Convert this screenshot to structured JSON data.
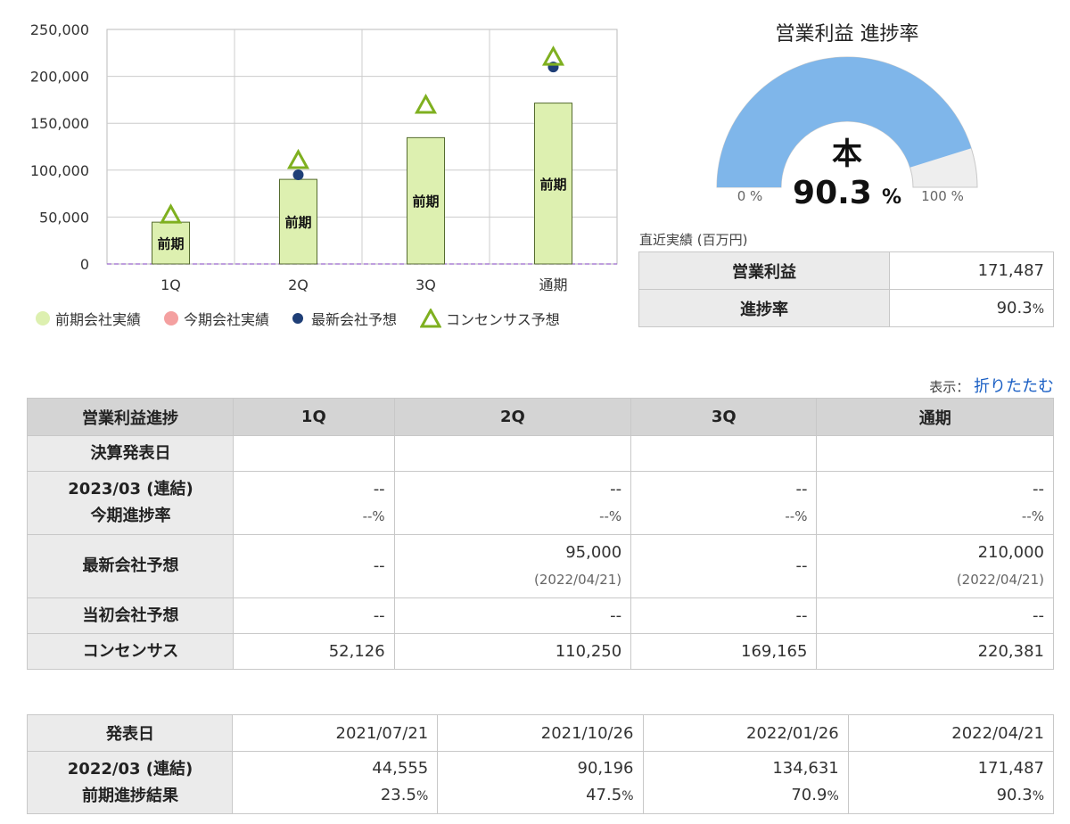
{
  "chart_data": {
    "type": "bar",
    "categories": [
      "1Q",
      "2Q",
      "3Q",
      "通期"
    ],
    "ylim": [
      0,
      250000
    ],
    "y_ticks": [
      "0",
      "50,000",
      "100,000",
      "150,000",
      "200,000",
      "250,000"
    ],
    "y_tick_values": [
      0,
      50000,
      100000,
      150000,
      200000,
      250000
    ],
    "grid": true,
    "bar_label": "前期",
    "series": [
      {
        "name": "前期会社実績",
        "type": "bar",
        "color": "#ddf0b0",
        "values": [
          44555,
          90196,
          134631,
          171487
        ]
      },
      {
        "name": "今期会社実績",
        "type": "scatter",
        "color": "#f4a0a0",
        "values": [
          null,
          null,
          null,
          null
        ]
      },
      {
        "name": "最新会社予想",
        "type": "scatter",
        "color": "#1f3f77",
        "values": [
          null,
          95000,
          null,
          210000
        ]
      },
      {
        "name": "コンセンサス予想",
        "type": "scatter",
        "marker": "triangle",
        "color": "#7fb020",
        "values": [
          52126,
          110250,
          169165,
          220381
        ]
      }
    ],
    "legend_position": "bottom"
  },
  "gauge": {
    "title": "営業利益 進捗率",
    "center_label": "本",
    "value": 90.3,
    "value_text": "90.3",
    "unit": "%",
    "min_label": "0 %",
    "max_label": "100 %",
    "fill_color": "#7fb6ea",
    "rest_color": "#eeeeee"
  },
  "recent": {
    "caption": "直近実績 (百万円)",
    "rows": [
      {
        "label": "営業利益",
        "value": "171,487",
        "unit": ""
      },
      {
        "label": "進捗率",
        "value": "90.3",
        "unit": "%"
      }
    ]
  },
  "toggle": {
    "label": "表示：",
    "link": "折りたたむ"
  },
  "progress_table": {
    "corner": "営業利益進捗",
    "headers": [
      "1Q",
      "2Q",
      "3Q",
      "通期"
    ],
    "row_announce": {
      "label": "決算発表日",
      "cells": [
        "",
        "",
        "",
        ""
      ]
    },
    "row_current": {
      "label_line1": "2023/03 (連結)",
      "label_line2": "今期進捗率",
      "cells": [
        {
          "v": "--",
          "p": "--",
          "u": "%"
        },
        {
          "v": "--",
          "p": "--",
          "u": "%"
        },
        {
          "v": "--",
          "p": "--",
          "u": "%"
        },
        {
          "v": "--",
          "p": "--",
          "u": "%"
        }
      ]
    },
    "row_latest": {
      "label": "最新会社予想",
      "cells": [
        {
          "v": "--",
          "d": ""
        },
        {
          "v": "95,000",
          "d": "(2022/04/21)"
        },
        {
          "v": "--",
          "d": ""
        },
        {
          "v": "210,000",
          "d": "(2022/04/21)"
        }
      ]
    },
    "row_initial": {
      "label": "当初会社予想",
      "cells": [
        "--",
        "--",
        "--",
        "--"
      ]
    },
    "row_consensus": {
      "label": "コンセンサス",
      "cells": [
        "52,126",
        "110,250",
        "169,165",
        "220,381"
      ]
    }
  },
  "history_table": {
    "row_dates": {
      "label": "発表日",
      "cells": [
        "2021/07/21",
        "2021/10/26",
        "2022/01/26",
        "2022/04/21"
      ]
    },
    "row_prev": {
      "label_line1": "2022/03 (連結)",
      "label_line2": "前期進捗結果",
      "cells": [
        {
          "v": "44,555",
          "p": "23.5",
          "u": "%"
        },
        {
          "v": "90,196",
          "p": "47.5",
          "u": "%"
        },
        {
          "v": "134,631",
          "p": "70.9",
          "u": "%"
        },
        {
          "v": "171,487",
          "p": "90.3",
          "u": "%"
        }
      ]
    }
  }
}
